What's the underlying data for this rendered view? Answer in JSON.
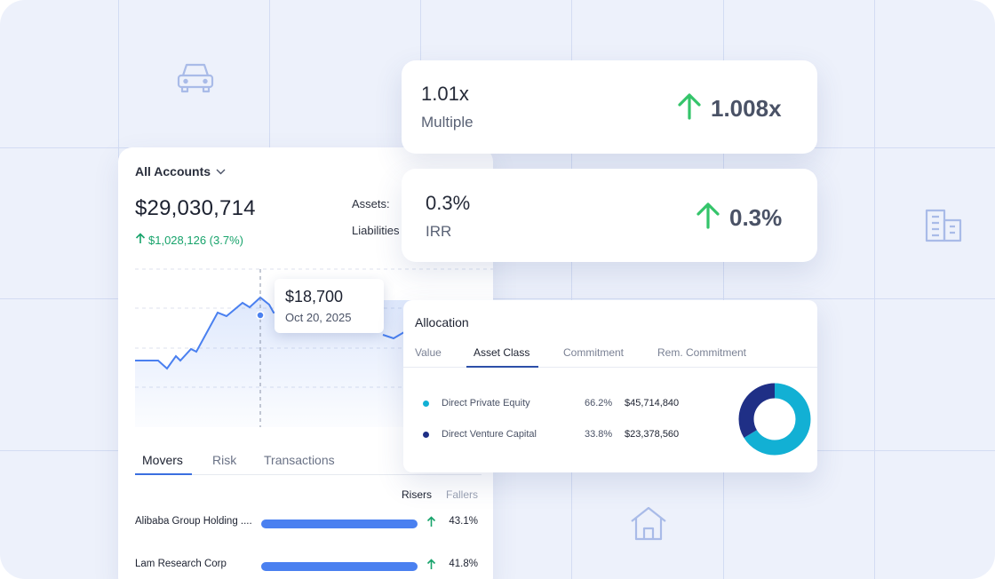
{
  "account": {
    "selector_label": "All Accounts",
    "total_value": "$29,030,714",
    "change": "$1,028,126 (3.7%)",
    "assets_label": "Assets:",
    "liabilities_label": "Liabilities",
    "tooltip": {
      "value": "$18,700",
      "date": "Oct 20, 2025"
    },
    "tabs": [
      {
        "label": "Movers",
        "active": true
      },
      {
        "label": "Risk",
        "active": false
      },
      {
        "label": "Transactions",
        "active": false
      }
    ],
    "filters": {
      "risers": "Risers",
      "fallers": "Fallers"
    },
    "movers": [
      {
        "name": "Alibaba Group Holding ....",
        "pct": "43.1%",
        "direction": "up"
      },
      {
        "name": "Lam Research Corp",
        "pct": "41.8%",
        "direction": "up"
      }
    ]
  },
  "metrics": [
    {
      "value": "1.01x",
      "label": "Multiple",
      "delta": "1.008x",
      "direction": "up"
    },
    {
      "value": "0.3%",
      "label": "IRR",
      "delta": "0.3%",
      "direction": "up"
    }
  ],
  "allocation": {
    "title": "Allocation",
    "tabs": [
      {
        "label": "Value",
        "active": false
      },
      {
        "label": "Asset Class",
        "active": true
      },
      {
        "label": "Commitment",
        "active": false
      },
      {
        "label": "Rem. Commitment",
        "active": false
      }
    ],
    "rows": [
      {
        "name": "Direct Private Equity",
        "pct": "66.2%",
        "amount": "$45,714,840",
        "color": "#12b0d4",
        "share": 0.662
      },
      {
        "name": "Direct Venture Capital",
        "pct": "33.8%",
        "amount": "$23,378,560",
        "color": "#1f2f86",
        "share": 0.338
      }
    ]
  },
  "colors": {
    "accent_blue": "#4a80f0",
    "positive_green": "#17a36b",
    "delta_arrow_green": "#34c46a",
    "background": "#edf1fb"
  },
  "background_icons": [
    "car-icon",
    "building-icon",
    "house-icon"
  ]
}
